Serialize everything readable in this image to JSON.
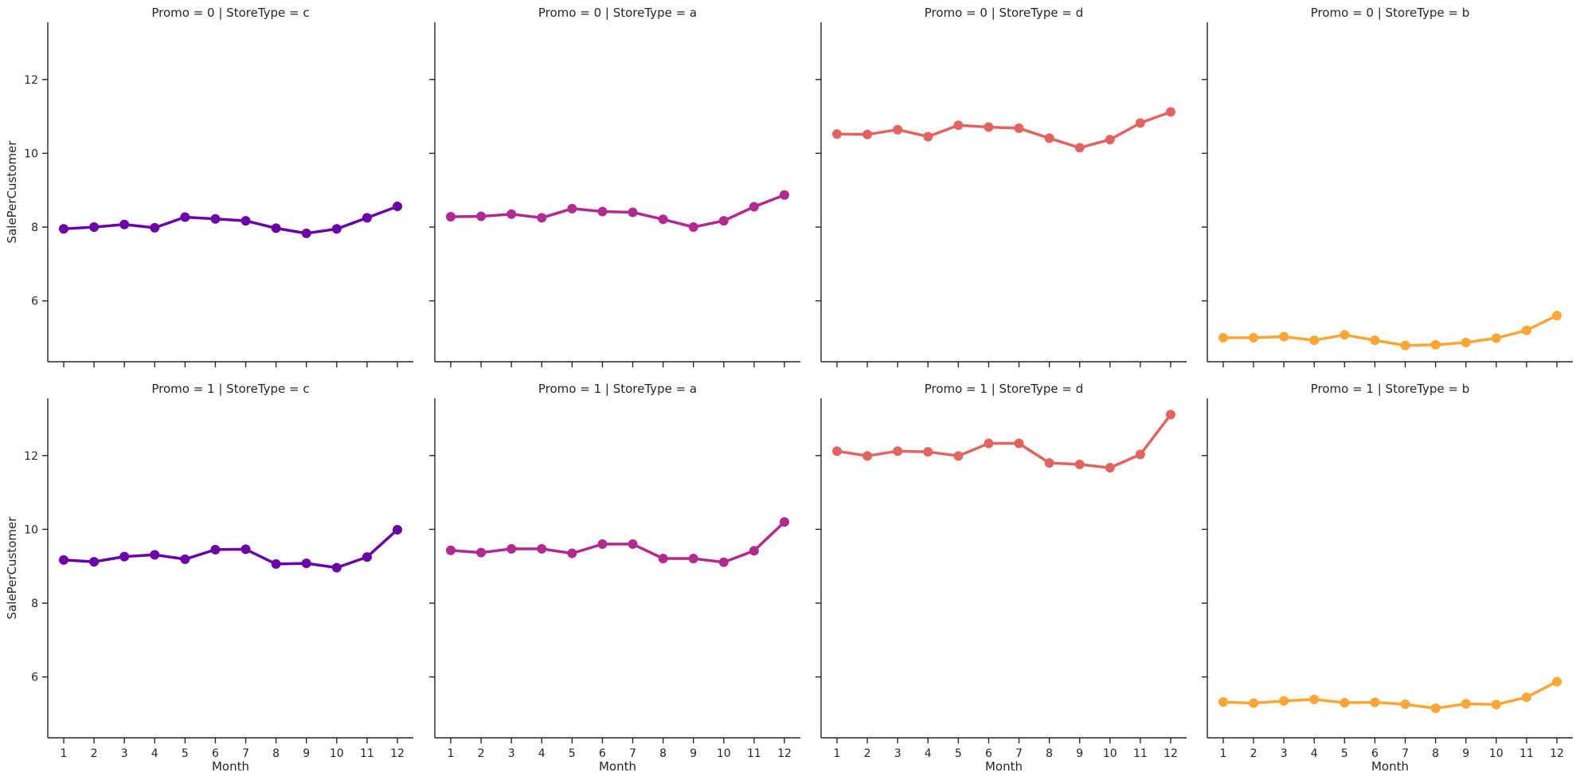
{
  "chart_data": {
    "type": "line",
    "x": [
      1,
      2,
      3,
      4,
      5,
      6,
      7,
      8,
      9,
      10,
      11,
      12
    ],
    "xlabel": "Month",
    "ylabel": "SalePerCustomer",
    "yticks": [
      6,
      8,
      10,
      12
    ],
    "ylim": [
      4.35,
      13.55
    ],
    "grid": false,
    "sharey": true,
    "panels": [
      {
        "title": "Promo = 0 | StoreType = c",
        "color": "#6a00a8",
        "values": [
          7.95,
          8.0,
          8.07,
          7.98,
          8.27,
          8.22,
          8.17,
          7.97,
          7.83,
          7.95,
          8.25,
          8.56
        ]
      },
      {
        "title": "Promo = 0 | StoreType = a",
        "color": "#b12a90",
        "values": [
          8.28,
          8.29,
          8.35,
          8.25,
          8.5,
          8.42,
          8.4,
          8.21,
          8.0,
          8.17,
          8.55,
          8.87
        ]
      },
      {
        "title": "Promo = 0 | StoreType = d",
        "color": "#e16462",
        "values": [
          10.52,
          10.51,
          10.64,
          10.45,
          10.76,
          10.71,
          10.68,
          10.41,
          10.15,
          10.37,
          10.82,
          11.12
        ]
      },
      {
        "title": "Promo = 0 | StoreType = b",
        "color": "#fca636",
        "values": [
          5.0,
          5.0,
          5.03,
          4.93,
          5.08,
          4.93,
          4.79,
          4.81,
          4.87,
          4.99,
          5.2,
          5.6
        ]
      },
      {
        "title": "Promo = 1 | StoreType = c",
        "color": "#6a00a8",
        "values": [
          9.17,
          9.12,
          9.26,
          9.31,
          9.19,
          9.45,
          9.46,
          9.06,
          9.08,
          8.96,
          9.25,
          9.99
        ]
      },
      {
        "title": "Promo = 1 | StoreType = a",
        "color": "#b12a90",
        "values": [
          9.43,
          9.37,
          9.47,
          9.47,
          9.35,
          9.6,
          9.6,
          9.21,
          9.21,
          9.11,
          9.42,
          10.2
        ]
      },
      {
        "title": "Promo = 1 | StoreType = d",
        "color": "#e16462",
        "values": [
          12.12,
          11.99,
          12.12,
          12.1,
          11.99,
          12.33,
          12.33,
          11.8,
          11.76,
          11.67,
          12.03,
          13.11
        ]
      },
      {
        "title": "Promo = 1 | StoreType = b",
        "color": "#fca636",
        "values": [
          5.32,
          5.29,
          5.35,
          5.39,
          5.3,
          5.31,
          5.26,
          5.15,
          5.27,
          5.25,
          5.45,
          5.87
        ]
      }
    ]
  }
}
